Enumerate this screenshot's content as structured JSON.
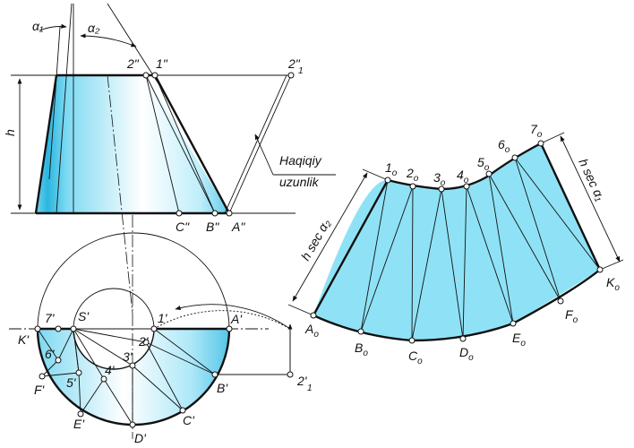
{
  "angles": {
    "alpha1": "α₁",
    "alpha2": "α₂"
  },
  "front_view": {
    "height_label": "h",
    "top_points": [
      "2\"",
      "1\""
    ],
    "apex_label": "2\"",
    "apex_sub": "1",
    "bottom_points": [
      "C\"",
      "B\"",
      "A\""
    ]
  },
  "callout": {
    "line1": "Haqiqiy",
    "line2": "uzunlik"
  },
  "top_view": {
    "outer_labels": [
      "K'",
      "F'",
      "E'",
      "D'",
      "C'",
      "B'",
      "A'"
    ],
    "inner_labels": [
      "7'",
      "6'",
      "5'",
      "4'",
      "3'",
      "2'",
      "1'"
    ],
    "center_label": "S'",
    "rot_label": "2'",
    "rot_sub": "1"
  },
  "development": {
    "top_points": [
      "1",
      "2",
      "3",
      "4",
      "5",
      "6",
      "7"
    ],
    "bottom_points": [
      "A",
      "B",
      "C",
      "D",
      "E",
      "F",
      "K"
    ],
    "subscript": "o",
    "left_dim": "h sec α₂",
    "right_dim": "h sec α₁"
  },
  "colors": {
    "fill": "#8ee3f6",
    "fill_dark": "#2eb8e0",
    "stroke": "#111111"
  }
}
